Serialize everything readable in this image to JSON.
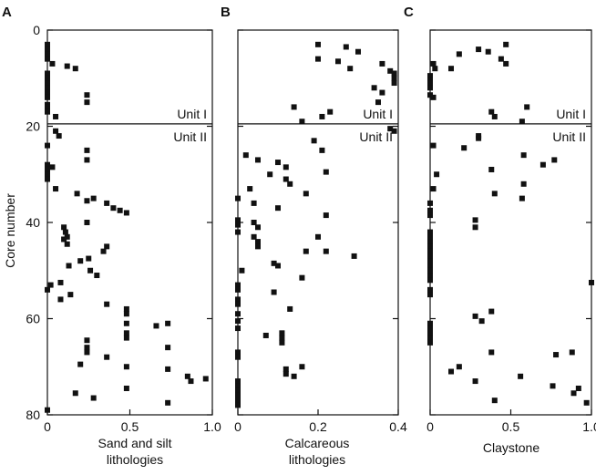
{
  "chart_data": [
    {
      "type": "scatter",
      "panel_label": "A",
      "xlabel": [
        "Sand and silt",
        "lithologies"
      ],
      "ylabel": "Core number",
      "xlim": [
        0,
        1.0
      ],
      "ylim": [
        80,
        0
      ],
      "x_ticks": [
        "0",
        "0.5",
        "1.0"
      ],
      "x_tick_values": [
        0,
        0.5,
        1.0
      ],
      "y_ticks": [
        "0",
        "20",
        "40",
        "60",
        "80"
      ],
      "y_tick_values": [
        0,
        20,
        40,
        60,
        80
      ],
      "units": {
        "boundary_core": 19.5,
        "upper": "Unit I",
        "lower": "Unit II"
      },
      "points": [
        [
          0,
          3
        ],
        [
          0,
          4
        ],
        [
          0,
          5
        ],
        [
          0,
          6
        ],
        [
          0.03,
          7
        ],
        [
          0.12,
          7.5
        ],
        [
          0.17,
          8
        ],
        [
          0,
          9
        ],
        [
          0,
          10
        ],
        [
          0,
          11
        ],
        [
          0,
          12
        ],
        [
          0,
          13
        ],
        [
          0.24,
          13.5
        ],
        [
          0,
          14
        ],
        [
          0.24,
          15
        ],
        [
          0,
          15.5
        ],
        [
          0,
          16
        ],
        [
          0,
          17
        ],
        [
          0.05,
          18
        ],
        [
          0.05,
          21
        ],
        [
          0.07,
          22
        ],
        [
          0,
          24
        ],
        [
          0.24,
          25
        ],
        [
          0.24,
          27
        ],
        [
          0,
          28
        ],
        [
          0.03,
          28.5
        ],
        [
          0,
          29
        ],
        [
          0,
          30
        ],
        [
          0,
          31
        ],
        [
          0.05,
          33
        ],
        [
          0.18,
          34
        ],
        [
          0.28,
          35
        ],
        [
          0.24,
          35.5
        ],
        [
          0.36,
          36
        ],
        [
          0.4,
          37
        ],
        [
          0.44,
          37.5
        ],
        [
          0.48,
          38
        ],
        [
          0.24,
          40
        ],
        [
          0.1,
          41
        ],
        [
          0.11,
          42
        ],
        [
          0.12,
          43
        ],
        [
          0.1,
          43.5
        ],
        [
          0.12,
          44.5
        ],
        [
          0.36,
          45
        ],
        [
          0.34,
          46
        ],
        [
          0.25,
          47.5
        ],
        [
          0.2,
          48
        ],
        [
          0.13,
          49
        ],
        [
          0.26,
          50
        ],
        [
          0.3,
          51
        ],
        [
          0.08,
          52.5
        ],
        [
          0.02,
          53
        ],
        [
          0,
          54
        ],
        [
          0.14,
          55
        ],
        [
          0.08,
          56
        ],
        [
          0.36,
          57
        ],
        [
          0.48,
          58
        ],
        [
          0.48,
          59
        ],
        [
          0.48,
          61
        ],
        [
          0.66,
          61.5
        ],
        [
          0.73,
          61
        ],
        [
          0.48,
          63
        ],
        [
          0.48,
          64
        ],
        [
          0.24,
          64.5
        ],
        [
          0.24,
          66
        ],
        [
          0.24,
          67
        ],
        [
          0.73,
          66
        ],
        [
          0.36,
          68
        ],
        [
          0.2,
          69.5
        ],
        [
          0.48,
          70
        ],
        [
          0.73,
          70.5
        ],
        [
          0.85,
          72
        ],
        [
          0.96,
          72.5
        ],
        [
          0.87,
          73
        ],
        [
          0.48,
          74.5
        ],
        [
          0.17,
          75.5
        ],
        [
          0.28,
          76.5
        ],
        [
          0.73,
          77.5
        ],
        [
          0,
          79
        ]
      ]
    },
    {
      "type": "scatter",
      "panel_label": "B",
      "xlabel": [
        "Calcareous",
        "lithologies"
      ],
      "xlim": [
        0,
        0.4
      ],
      "ylim": [
        80,
        0
      ],
      "x_ticks": [
        "0",
        "0.2",
        "0.4"
      ],
      "x_tick_values": [
        0,
        0.2,
        0.4
      ],
      "units": {
        "boundary_core": 19.5,
        "upper": "Unit I",
        "lower": "Unit II"
      },
      "points": [
        [
          0.2,
          3
        ],
        [
          0.27,
          3.5
        ],
        [
          0.3,
          4.5
        ],
        [
          0.2,
          6
        ],
        [
          0.25,
          6.5
        ],
        [
          0.36,
          7
        ],
        [
          0.28,
          8
        ],
        [
          0.38,
          8.5
        ],
        [
          0.39,
          9
        ],
        [
          0.39,
          10
        ],
        [
          0.39,
          11
        ],
        [
          0.34,
          12
        ],
        [
          0.36,
          13
        ],
        [
          0.35,
          15
        ],
        [
          0.14,
          16
        ],
        [
          0.23,
          17
        ],
        [
          0.21,
          18
        ],
        [
          0.16,
          19
        ],
        [
          0.38,
          20.5
        ],
        [
          0.39,
          21
        ],
        [
          0.19,
          23
        ],
        [
          0.21,
          25
        ],
        [
          0.02,
          26
        ],
        [
          0.05,
          27
        ],
        [
          0.1,
          27.5
        ],
        [
          0.12,
          28.5
        ],
        [
          0.22,
          29.5
        ],
        [
          0.08,
          30
        ],
        [
          0.12,
          31
        ],
        [
          0.13,
          32
        ],
        [
          0.03,
          33
        ],
        [
          0.17,
          34
        ],
        [
          0,
          35
        ],
        [
          0.04,
          36
        ],
        [
          0.1,
          37
        ],
        [
          0.22,
          38.5
        ],
        [
          0,
          39.5
        ],
        [
          0,
          40.5
        ],
        [
          0.04,
          40
        ],
        [
          0.05,
          41
        ],
        [
          0,
          42
        ],
        [
          0.04,
          43
        ],
        [
          0.05,
          44
        ],
        [
          0.05,
          45
        ],
        [
          0.17,
          46
        ],
        [
          0.2,
          43
        ],
        [
          0.22,
          46
        ],
        [
          0.29,
          47
        ],
        [
          0.09,
          48.5
        ],
        [
          0.1,
          49
        ],
        [
          0.01,
          50
        ],
        [
          0.16,
          51.5
        ],
        [
          0,
          53
        ],
        [
          0,
          54
        ],
        [
          0.09,
          54.5
        ],
        [
          0,
          56
        ],
        [
          0,
          57
        ],
        [
          0.13,
          58
        ],
        [
          0,
          59
        ],
        [
          0,
          60.5
        ],
        [
          0,
          62
        ],
        [
          0.07,
          63.5
        ],
        [
          0.11,
          63
        ],
        [
          0.11,
          64
        ],
        [
          0.11,
          65
        ],
        [
          0,
          67
        ],
        [
          0,
          68
        ],
        [
          0.16,
          70
        ],
        [
          0.12,
          71.5
        ],
        [
          0.14,
          72
        ],
        [
          0,
          73
        ],
        [
          0,
          74
        ],
        [
          0,
          75
        ],
        [
          0,
          76
        ],
        [
          0,
          77
        ],
        [
          0,
          78
        ],
        [
          0.12,
          70.5
        ]
      ]
    },
    {
      "type": "scatter",
      "panel_label": "C",
      "xlabel": [
        "Claystone"
      ],
      "xlim": [
        0,
        1.0
      ],
      "ylim": [
        80,
        0
      ],
      "x_ticks": [
        "0",
        "0.5",
        "1.0"
      ],
      "x_tick_values": [
        0,
        0.5,
        1.0
      ],
      "units": {
        "boundary_core": 19.5,
        "upper": "Unit I",
        "lower": "Unit II"
      },
      "points": [
        [
          0.47,
          3
        ],
        [
          0.3,
          4
        ],
        [
          0.36,
          4.5
        ],
        [
          0.18,
          5
        ],
        [
          0.44,
          6
        ],
        [
          0.47,
          7
        ],
        [
          0.02,
          7
        ],
        [
          0.03,
          8
        ],
        [
          0.13,
          8
        ],
        [
          0,
          9.5
        ],
        [
          0,
          10.5
        ],
        [
          0,
          11
        ],
        [
          0,
          12
        ],
        [
          0,
          13.5
        ],
        [
          0.02,
          14
        ],
        [
          0.38,
          17
        ],
        [
          0.4,
          18
        ],
        [
          0.6,
          16
        ],
        [
          0.57,
          19
        ],
        [
          0.3,
          22
        ],
        [
          0.3,
          22.5
        ],
        [
          0.02,
          24
        ],
        [
          0.21,
          24.5
        ],
        [
          0.58,
          26
        ],
        [
          0.7,
          28
        ],
        [
          0.77,
          27
        ],
        [
          0.38,
          29
        ],
        [
          0.04,
          30
        ],
        [
          0.58,
          32
        ],
        [
          0.02,
          33
        ],
        [
          0.4,
          34
        ],
        [
          0.57,
          35
        ],
        [
          0,
          36
        ],
        [
          0,
          37.5
        ],
        [
          0,
          38.5
        ],
        [
          0.28,
          39.5
        ],
        [
          0.28,
          41
        ],
        [
          0,
          42
        ],
        [
          0,
          43
        ],
        [
          0,
          44
        ],
        [
          0,
          45
        ],
        [
          0,
          46
        ],
        [
          0,
          47
        ],
        [
          0,
          48
        ],
        [
          0,
          49
        ],
        [
          0,
          50
        ],
        [
          0,
          51
        ],
        [
          0,
          52
        ],
        [
          0,
          54
        ],
        [
          0,
          55
        ],
        [
          0.28,
          59.5
        ],
        [
          0.38,
          58.5
        ],
        [
          0.32,
          60.5
        ],
        [
          0,
          61
        ],
        [
          0,
          62
        ],
        [
          0,
          63
        ],
        [
          0,
          64
        ],
        [
          0,
          65
        ],
        [
          0.38,
          67
        ],
        [
          0.78,
          67.5
        ],
        [
          0.88,
          67
        ],
        [
          0.18,
          70
        ],
        [
          0.13,
          71
        ],
        [
          0.56,
          72
        ],
        [
          0.28,
          73
        ],
        [
          0.76,
          74
        ],
        [
          0.92,
          74.5
        ],
        [
          0.89,
          75.5
        ],
        [
          0.4,
          77
        ],
        [
          0.97,
          77.5
        ],
        [
          1.0,
          52.5
        ]
      ]
    }
  ]
}
